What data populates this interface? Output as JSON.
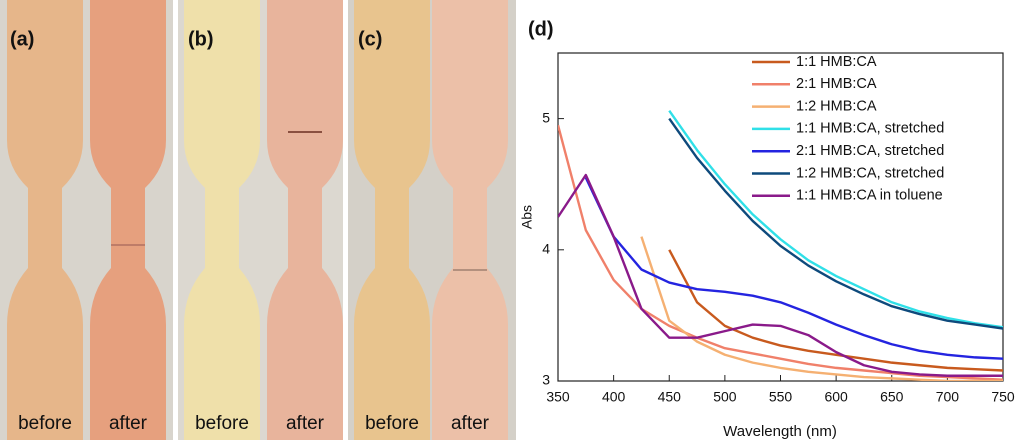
{
  "panels": [
    {
      "label": "(a)",
      "specimens": [
        "before",
        "after"
      ]
    },
    {
      "label": "(b)",
      "specimens": [
        "before",
        "after"
      ]
    },
    {
      "label": "(c)",
      "specimens": [
        "before",
        "after"
      ]
    }
  ],
  "chart_data": {
    "type": "line",
    "title": "(d)",
    "x_label": "Wavelength (nm)",
    "y_label": "Abs",
    "x": [
      350,
      375,
      400,
      425,
      450,
      475,
      500,
      525,
      550,
      575,
      600,
      625,
      650,
      675,
      700,
      725,
      750
    ],
    "xlim": [
      350,
      750
    ],
    "ylim": [
      3,
      5.5
    ],
    "xticks": [
      350,
      400,
      450,
      500,
      550,
      600,
      650,
      700,
      750
    ],
    "yticks": [
      3,
      4,
      5
    ],
    "series": [
      {
        "name": "1:1 HMB:CA",
        "color": "#c85a1e",
        "values": [
          null,
          null,
          null,
          null,
          4.0,
          3.6,
          3.42,
          3.33,
          3.27,
          3.23,
          3.2,
          3.17,
          3.14,
          3.12,
          3.1,
          3.09,
          3.08
        ]
      },
      {
        "name": "2:1 HMB:CA",
        "color": "#f0806a",
        "values": [
          4.95,
          4.15,
          3.77,
          3.55,
          3.42,
          3.33,
          3.25,
          3.21,
          3.17,
          3.13,
          3.1,
          3.08,
          3.06,
          3.04,
          3.03,
          3.02,
          3.01
        ]
      },
      {
        "name": "1:2 HMB:CA",
        "color": "#f5b072",
        "values": [
          null,
          null,
          null,
          4.1,
          3.46,
          3.3,
          3.2,
          3.14,
          3.1,
          3.07,
          3.05,
          3.03,
          3.02,
          3.01,
          3.0,
          3.0,
          3.0
        ]
      },
      {
        "name": "1:1 HMB:CA, stretched",
        "color": "#30e0e8",
        "values": [
          null,
          null,
          null,
          null,
          5.06,
          4.76,
          4.5,
          4.27,
          4.08,
          3.92,
          3.8,
          3.7,
          3.6,
          3.53,
          3.48,
          3.44,
          3.41
        ]
      },
      {
        "name": "2:1 HMB:CA, stretched",
        "color": "#2424e0",
        "values": [
          null,
          4.55,
          4.1,
          3.85,
          3.75,
          3.7,
          3.68,
          3.65,
          3.6,
          3.52,
          3.43,
          3.35,
          3.28,
          3.23,
          3.2,
          3.18,
          3.17
        ]
      },
      {
        "name": "1:2 HMB:CA, stretched",
        "color": "#0e4a7c",
        "values": [
          null,
          null,
          null,
          null,
          5.0,
          4.7,
          4.45,
          4.22,
          4.03,
          3.88,
          3.76,
          3.66,
          3.57,
          3.51,
          3.46,
          3.43,
          3.4
        ]
      },
      {
        "name": "1:1 HMB:CA in toluene",
        "color": "#8a1a8a",
        "values": [
          4.25,
          4.57,
          4.1,
          3.55,
          3.33,
          3.33,
          3.38,
          3.43,
          3.42,
          3.35,
          3.22,
          3.12,
          3.07,
          3.05,
          3.04,
          3.04,
          3.04
        ]
      }
    ]
  }
}
